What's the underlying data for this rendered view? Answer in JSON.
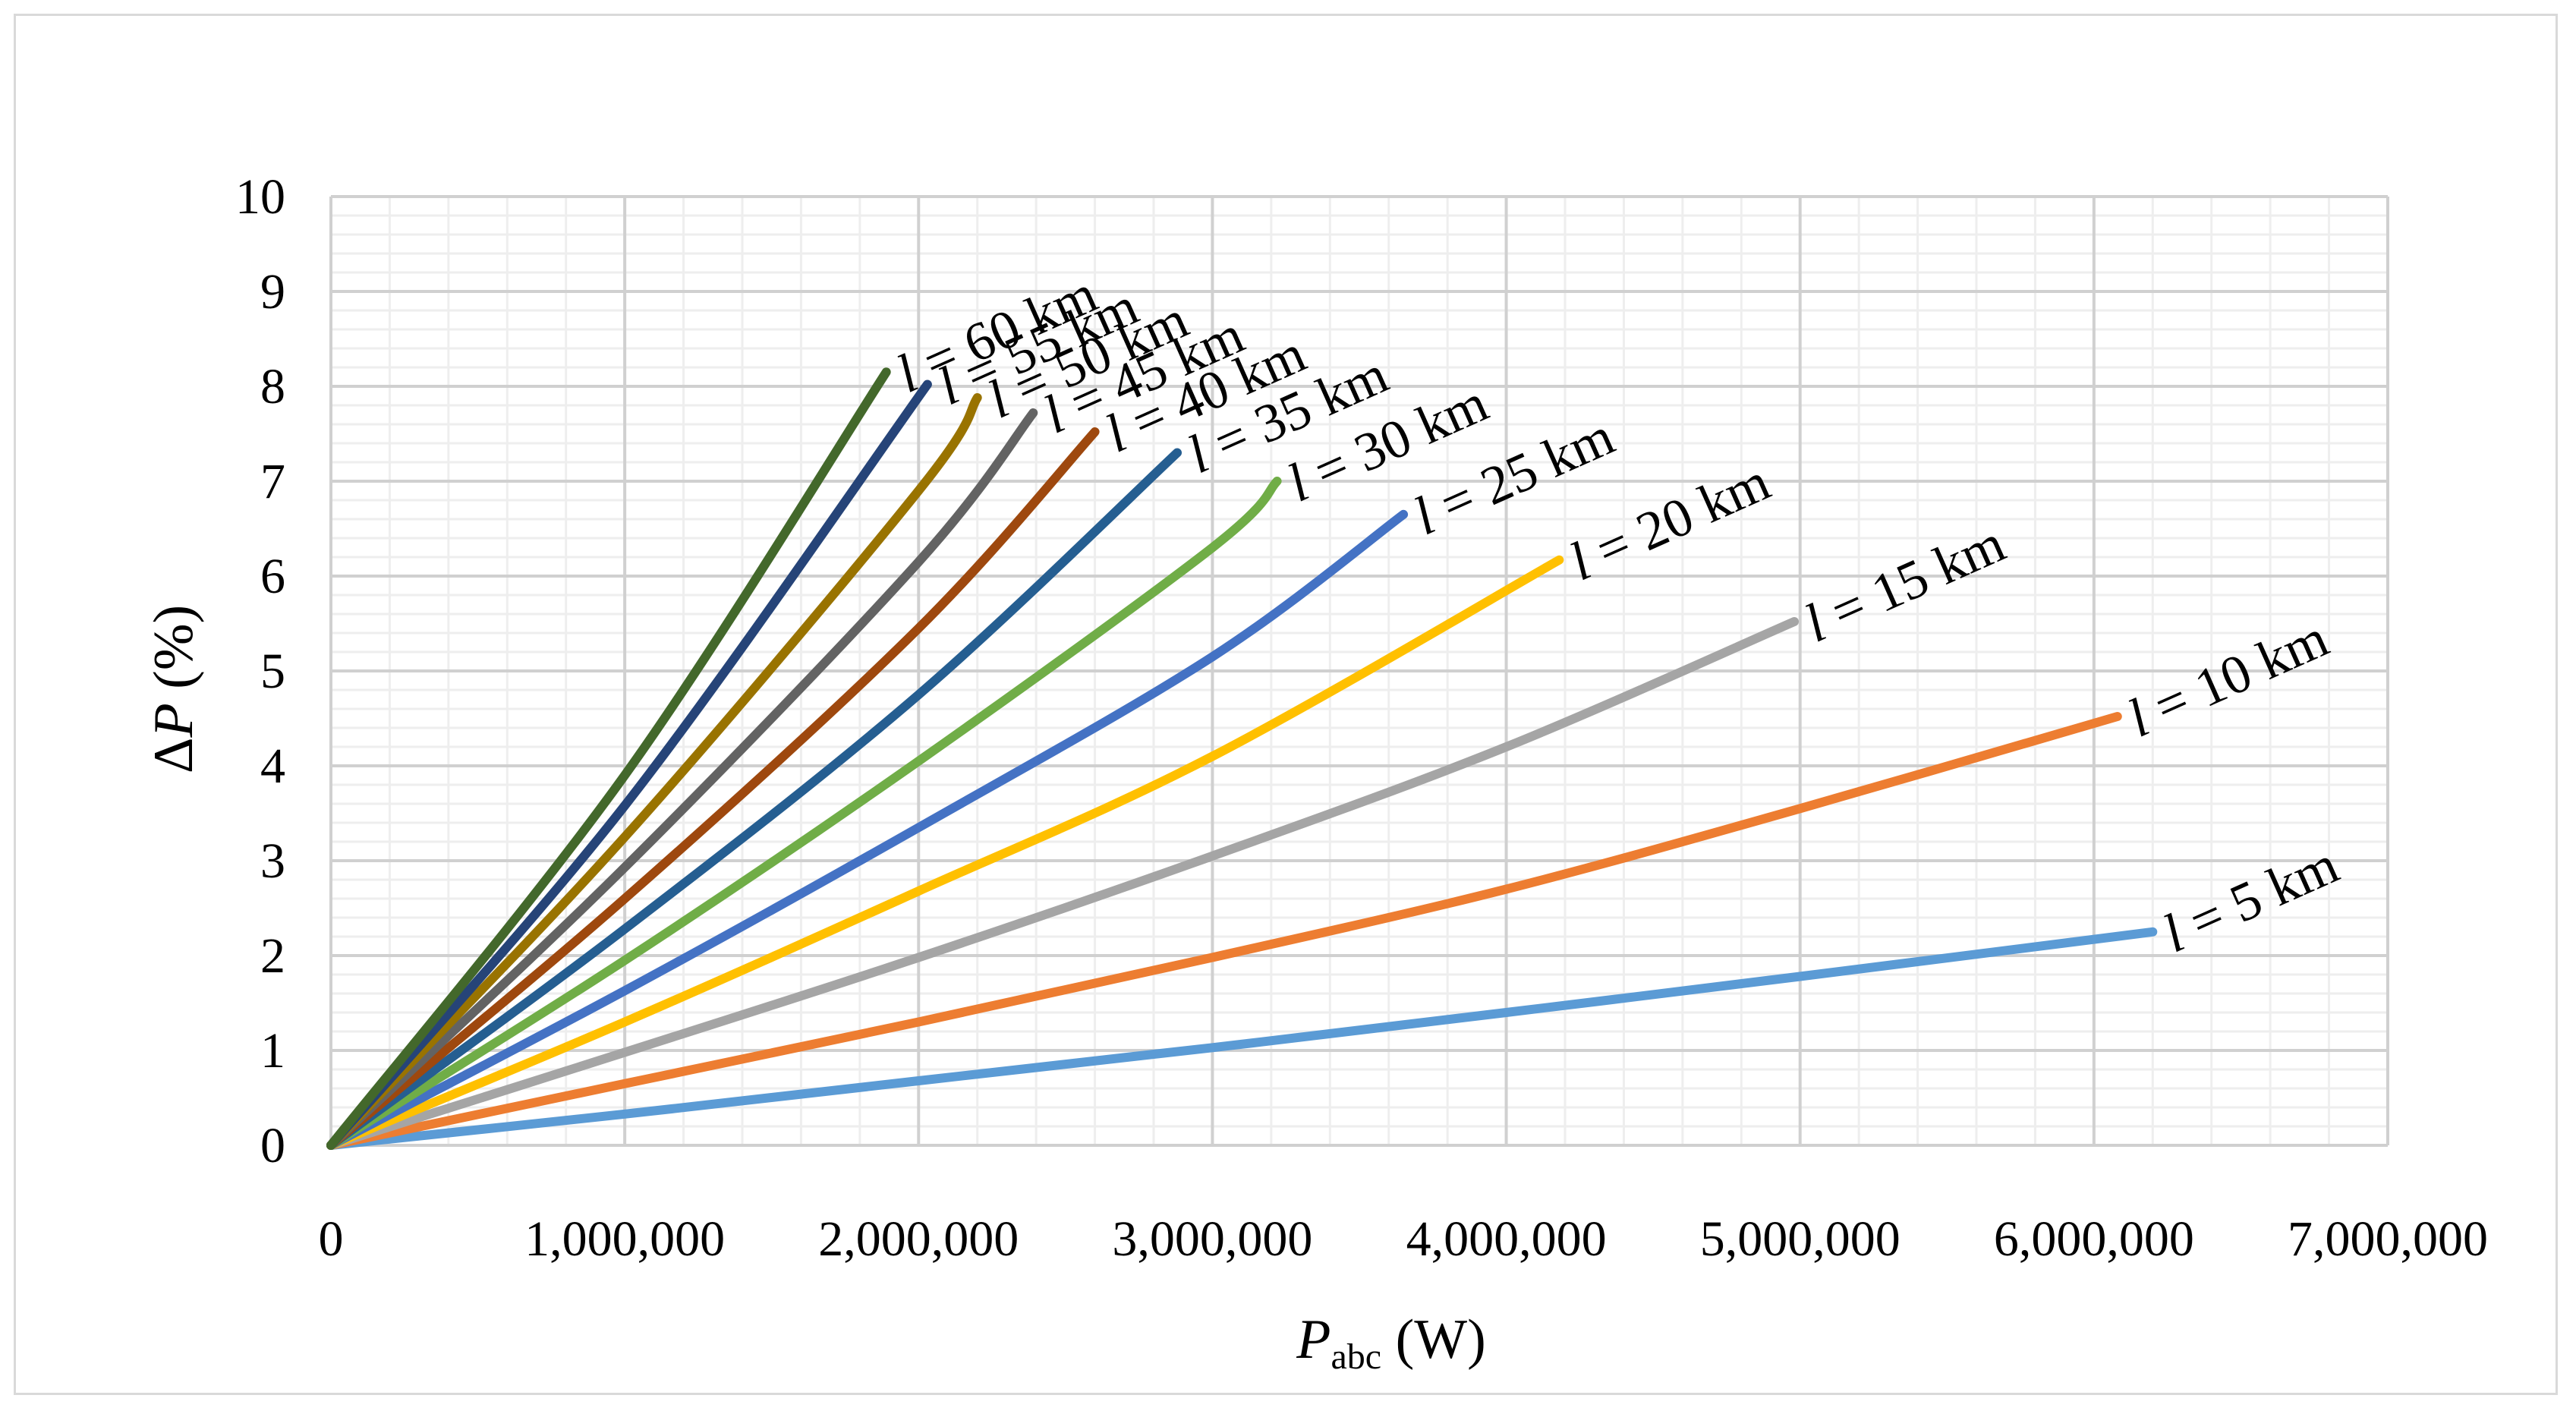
{
  "chart_data": {
    "type": "line",
    "title": "",
    "xlabel": {
      "main": "P",
      "sub": "abc",
      "unit": " (W)"
    },
    "ylabel": {
      "prefix": "Δ",
      "main": "P",
      "unit": " (%)"
    },
    "xlim": [
      0,
      7000000
    ],
    "ylim": [
      0,
      10
    ],
    "x_ticks": [
      0,
      1000000,
      2000000,
      3000000,
      4000000,
      5000000,
      6000000,
      7000000
    ],
    "x_tick_labels": [
      "0",
      "1,000,000",
      "2,000,000",
      "3,000,000",
      "4,000,000",
      "5,000,000",
      "6,000,000",
      "7,000,000"
    ],
    "y_ticks": [
      0,
      1,
      2,
      3,
      4,
      5,
      6,
      7,
      8,
      9,
      10
    ],
    "y_tick_labels": [
      "0",
      "1",
      "2",
      "3",
      "4",
      "5",
      "6",
      "7",
      "8",
      "9",
      "10"
    ],
    "grid": {
      "major": true,
      "minor": true
    },
    "label_unit": " km",
    "series": [
      {
        "name": "l = 5 km",
        "label": "5",
        "color": "#5b9bd5",
        "x": [
          0,
          1000000,
          2000000,
          3000000,
          4000000,
          5000000,
          6200000
        ],
        "y": [
          0,
          0.33,
          0.68,
          1.03,
          1.4,
          1.78,
          2.25
        ]
      },
      {
        "name": "l = 10 km",
        "label": "10",
        "color": "#ed7d31",
        "x": [
          0,
          1000000,
          2000000,
          3000000,
          4000000,
          5000000,
          6080000
        ],
        "y": [
          0,
          0.65,
          1.3,
          1.98,
          2.7,
          3.55,
          4.52
        ]
      },
      {
        "name": "l = 15 km",
        "label": "15",
        "color": "#a5a5a5",
        "x": [
          0,
          1000000,
          2000000,
          3000000,
          4000000,
          4980000
        ],
        "y": [
          0,
          0.98,
          1.98,
          3.05,
          4.2,
          5.52
        ]
      },
      {
        "name": "l = 20 km",
        "label": "20",
        "color": "#ffc000",
        "x": [
          0,
          1000000,
          2000000,
          3000000,
          4180000
        ],
        "y": [
          0,
          1.3,
          2.68,
          4.1,
          6.17
        ]
      },
      {
        "name": "l = 25 km",
        "label": "25",
        "color": "#4472c4",
        "x": [
          0,
          1000000,
          2000000,
          3000000,
          3650000
        ],
        "y": [
          0,
          1.63,
          3.35,
          5.15,
          6.65
        ]
      },
      {
        "name": "l = 30 km",
        "label": "30",
        "color": "#70ad47",
        "x": [
          0,
          1000000,
          2000000,
          3000000,
          3220000
        ],
        "y": [
          0,
          1.95,
          4.05,
          6.3,
          7.0
        ]
      },
      {
        "name": "l = 35 km",
        "label": "35",
        "color": "#255e91",
        "x": [
          0,
          1000000,
          2000000,
          2880000
        ],
        "y": [
          0,
          2.28,
          4.75,
          7.3
        ]
      },
      {
        "name": "l = 40 km",
        "label": "40",
        "color": "#9e480e",
        "x": [
          0,
          1000000,
          2000000,
          2600000
        ],
        "y": [
          0,
          2.6,
          5.45,
          7.52
        ]
      },
      {
        "name": "l = 45 km",
        "label": "45",
        "color": "#636363",
        "x": [
          0,
          1000000,
          2000000,
          2390000
        ],
        "y": [
          0,
          2.93,
          6.15,
          7.72
        ]
      },
      {
        "name": "l = 50 km",
        "label": "50",
        "color": "#997300",
        "x": [
          0,
          1000000,
          2000000,
          2200000
        ],
        "y": [
          0,
          3.25,
          6.9,
          7.88
        ]
      },
      {
        "name": "l = 55 km",
        "label": "55",
        "color": "#264478",
        "x": [
          0,
          1000000,
          2030000
        ],
        "y": [
          0,
          3.58,
          8.02
        ]
      },
      {
        "name": "l = 60 km",
        "label": "60",
        "color": "#43682b",
        "x": [
          0,
          1000000,
          1890000
        ],
        "y": [
          0,
          3.9,
          8.15
        ]
      }
    ]
  }
}
